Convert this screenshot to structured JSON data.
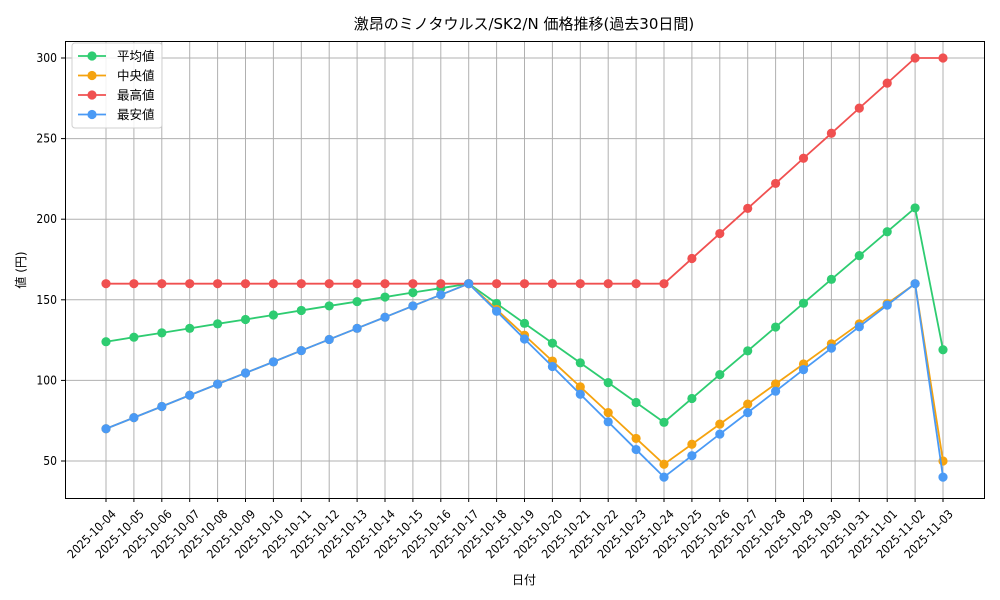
{
  "chart_data": {
    "type": "line",
    "title": "激昂のミノタウルス/SK2/N 価格推移(過去30日間)",
    "xlabel": "日付",
    "ylabel": "値 (円)",
    "ylim": [
      26,
      313
    ],
    "yticks": [
      50,
      100,
      150,
      200,
      250,
      300
    ],
    "grid": true,
    "legend_position": "upper left",
    "categories": [
      "2025-10-04",
      "2025-10-05",
      "2025-10-06",
      "2025-10-07",
      "2025-10-08",
      "2025-10-09",
      "2025-10-10",
      "2025-10-11",
      "2025-10-12",
      "2025-10-13",
      "2025-10-14",
      "2025-10-15",
      "2025-10-16",
      "2025-10-17",
      "2025-10-18",
      "2025-10-19",
      "2025-10-20",
      "2025-10-21",
      "2025-10-22",
      "2025-10-23",
      "2025-10-24",
      "2025-10-25",
      "2025-10-26",
      "2025-10-27",
      "2025-10-28",
      "2025-10-29",
      "2025-10-30",
      "2025-10-31",
      "2025-11-01",
      "2025-11-02",
      "2025-11-03"
    ],
    "series": [
      {
        "name": "平均値",
        "color": "#2ecc71",
        "values": [
          124.0,
          126.8,
          129.5,
          132.3,
          135.1,
          137.8,
          140.6,
          143.4,
          146.2,
          148.9,
          151.7,
          154.5,
          157.2,
          160.0,
          147.7,
          135.4,
          123.1,
          110.9,
          98.6,
          86.3,
          74.0,
          88.8,
          103.6,
          118.3,
          133.1,
          147.9,
          162.7,
          177.4,
          192.2,
          207.0,
          119.0
        ]
      },
      {
        "name": "中央値",
        "color": "#f5a30f",
        "values": [
          70.0,
          76.9,
          83.8,
          90.8,
          97.7,
          104.6,
          111.5,
          118.5,
          125.4,
          132.3,
          139.2,
          146.2,
          153.1,
          160.0,
          144.0,
          128.0,
          112.0,
          96.0,
          80.0,
          64.0,
          48.0,
          60.4,
          72.9,
          85.3,
          97.8,
          110.2,
          122.7,
          135.1,
          147.6,
          160.0,
          50.0
        ]
      },
      {
        "name": "最高値",
        "color": "#f05050",
        "values": [
          160,
          160,
          160,
          160,
          160,
          160,
          160,
          160,
          160,
          160,
          160,
          160,
          160,
          160,
          160,
          160,
          160,
          160,
          160,
          160,
          160,
          175.6,
          191.1,
          206.7,
          222.2,
          237.8,
          253.3,
          268.9,
          284.4,
          300,
          300
        ]
      },
      {
        "name": "最安値",
        "color": "#4a9af5",
        "values": [
          70.0,
          76.9,
          83.8,
          90.8,
          97.7,
          104.6,
          111.5,
          118.5,
          125.4,
          132.3,
          139.2,
          146.2,
          153.1,
          160.0,
          142.9,
          125.7,
          108.6,
          91.4,
          74.3,
          57.1,
          40.0,
          53.3,
          66.7,
          80.0,
          93.3,
          106.7,
          120.0,
          133.3,
          146.7,
          160.0,
          40.0
        ]
      }
    ]
  }
}
